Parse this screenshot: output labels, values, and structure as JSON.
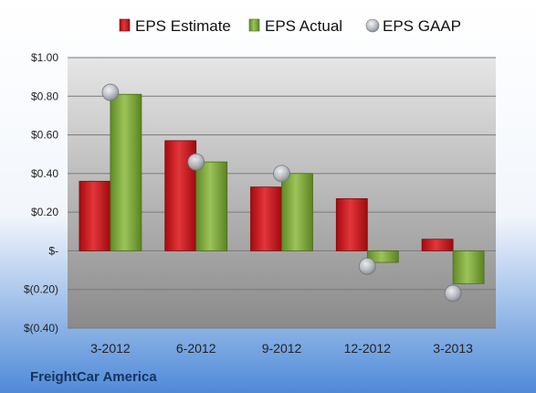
{
  "company": "FreightCar America",
  "colors": {
    "estimate": "#c0171c",
    "actual": "#7ba23a",
    "gaap": "#b8bcc4",
    "background_top": "#ffffff",
    "background_bottom": "#4f8ad8",
    "plot_top": "#e3e3e3",
    "plot_bottom": "#8a8a8a"
  },
  "chart_data": {
    "type": "bar",
    "categories": [
      "3-2012",
      "6-2012",
      "9-2012",
      "12-2012",
      "3-2013"
    ],
    "series": [
      {
        "name": "EPS Estimate",
        "values": [
          0.36,
          0.57,
          0.33,
          0.27,
          0.06
        ]
      },
      {
        "name": "EPS Actual",
        "values": [
          0.81,
          0.46,
          0.4,
          -0.06,
          -0.17
        ]
      },
      {
        "name": "EPS GAAP",
        "marker": "circle",
        "values": [
          0.82,
          0.46,
          0.4,
          -0.08,
          -0.22
        ]
      }
    ],
    "ylim": [
      -0.4,
      1.0
    ],
    "yticks": [
      1.0,
      0.8,
      0.6,
      0.4,
      0.2,
      0,
      -0.2,
      -0.4
    ],
    "ytick_labels": [
      "$1.00",
      "$0.80",
      "$0.60",
      "$0.40",
      "$0.20",
      "$-",
      "$(0.20)",
      "$(0.40)"
    ],
    "grid": true,
    "legend": "top"
  }
}
